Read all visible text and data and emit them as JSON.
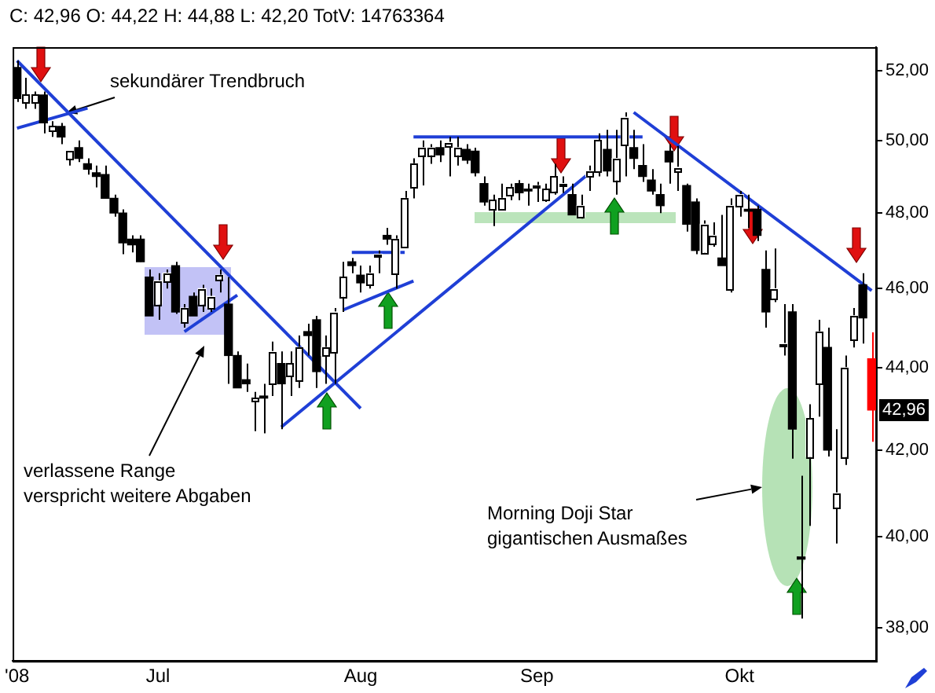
{
  "chart_data": {
    "type": "candlestick",
    "title": "C: 42,96 O: 44,22 H: 44,88 L: 42,20 TotV: 14763364",
    "categories": [
      "'08",
      null,
      null,
      null,
      null,
      null,
      null,
      null,
      null,
      null,
      null,
      null,
      null,
      null,
      null,
      null,
      "Jul",
      null,
      null,
      null,
      null,
      null,
      null,
      null,
      null,
      null,
      null,
      null,
      null,
      null,
      null,
      null,
      null,
      null,
      null,
      null,
      null,
      null,
      null,
      "Aug",
      null,
      null,
      null,
      null,
      null,
      null,
      null,
      null,
      null,
      null,
      null,
      null,
      null,
      null,
      null,
      null,
      null,
      null,
      null,
      "Sep",
      null,
      null,
      null,
      null,
      null,
      null,
      null,
      null,
      null,
      null,
      null,
      null,
      null,
      null,
      null,
      null,
      null,
      null,
      null,
      null,
      null,
      null,
      "Okt",
      null,
      null,
      null,
      null,
      null,
      null,
      null,
      null,
      null,
      null,
      null,
      null,
      null,
      null,
      null
    ],
    "ohlc": [
      [
        52.1,
        52.3,
        51.1,
        51.2
      ],
      [
        51.1,
        51.8,
        50.9,
        51.3
      ],
      [
        51.1,
        51.4,
        50.9,
        51.3
      ],
      [
        51.3,
        51.4,
        50.2,
        50.5
      ],
      [
        50.3,
        50.55,
        50.1,
        50.4
      ],
      [
        50.4,
        50.5,
        49.9,
        50.1
      ],
      [
        49.5,
        49.7,
        49.3,
        49.7
      ],
      [
        49.8,
        50.0,
        49.4,
        49.5
      ],
      [
        49.35,
        49.5,
        49.05,
        49.2
      ],
      [
        49.1,
        49.3,
        48.7,
        49.0
      ],
      [
        49.05,
        49.3,
        48.4,
        48.4
      ],
      [
        48.4,
        48.5,
        47.9,
        48.0
      ],
      [
        48.0,
        48.1,
        46.9,
        47.2
      ],
      [
        47.3,
        47.4,
        46.95,
        47.15
      ],
      [
        47.3,
        47.4,
        46.7,
        46.7
      ],
      [
        46.3,
        46.5,
        45.3,
        45.3
      ],
      [
        45.6,
        46.4,
        45.2,
        46.2
      ],
      [
        46.2,
        46.5,
        46.0,
        46.4
      ],
      [
        46.6,
        46.7,
        45.35,
        45.4
      ],
      [
        45.15,
        45.6,
        45.0,
        45.5
      ],
      [
        45.8,
        45.9,
        45.3,
        45.3
      ],
      [
        45.6,
        46.1,
        45.4,
        46.0
      ],
      [
        45.5,
        46.0,
        45.4,
        45.8
      ],
      [
        46.25,
        46.5,
        45.9,
        46.35
      ],
      [
        45.6,
        46.3,
        43.6,
        44.3
      ],
      [
        44.3,
        44.4,
        43.5,
        43.5
      ],
      [
        43.7,
        44.1,
        43.4,
        43.6
      ],
      [
        43.2,
        43.4,
        42.45,
        43.25
      ],
      [
        43.3,
        43.6,
        42.4,
        43.25
      ],
      [
        43.6,
        44.65,
        43.3,
        44.4
      ],
      [
        44.1,
        44.4,
        42.5,
        43.6
      ],
      [
        43.8,
        44.4,
        43.3,
        44.1
      ],
      [
        43.7,
        44.8,
        43.5,
        44.5
      ],
      [
        44.9,
        45.1,
        44.3,
        44.8
      ],
      [
        45.2,
        45.3,
        43.5,
        43.9
      ],
      [
        44.3,
        44.8,
        43.6,
        44.5
      ],
      [
        44.4,
        45.5,
        43.6,
        45.4
      ],
      [
        45.8,
        46.7,
        45.4,
        46.3
      ],
      [
        46.7,
        46.8,
        46.4,
        46.6
      ],
      [
        46.35,
        46.6,
        45.9,
        46.15
      ],
      [
        46.1,
        46.6,
        46.0,
        46.4
      ],
      [
        46.85,
        47.0,
        46.4,
        46.9
      ],
      [
        47.4,
        47.6,
        47.15,
        47.3
      ],
      [
        46.4,
        47.4,
        46.0,
        47.3
      ],
      [
        47.1,
        48.6,
        47.1,
        48.4
      ],
      [
        48.7,
        49.5,
        48.4,
        49.35
      ],
      [
        49.6,
        50.0,
        48.75,
        49.8
      ],
      [
        49.6,
        49.9,
        49.35,
        49.8
      ],
      [
        49.8,
        50.0,
        49.4,
        49.6
      ],
      [
        49.85,
        50.1,
        49.0,
        49.95
      ],
      [
        49.6,
        50.1,
        49.3,
        49.8
      ],
      [
        49.75,
        49.9,
        49.35,
        49.45
      ],
      [
        49.7,
        49.8,
        49.0,
        49.1
      ],
      [
        48.8,
        49.0,
        48.2,
        48.3
      ],
      [
        48.1,
        48.5,
        47.65,
        48.35
      ],
      [
        48.1,
        48.8,
        48.1,
        48.4
      ],
      [
        48.5,
        48.8,
        48.35,
        48.7
      ],
      [
        48.8,
        48.9,
        48.35,
        48.55
      ],
      [
        48.65,
        48.8,
        48.2,
        48.6
      ],
      [
        48.7,
        48.85,
        48.3,
        48.75
      ],
      [
        48.35,
        48.8,
        48.3,
        48.65
      ],
      [
        48.6,
        49.35,
        48.5,
        49.0
      ],
      [
        48.75,
        49.0,
        48.55,
        48.8
      ],
      [
        48.5,
        48.8,
        47.95,
        47.95
      ],
      [
        47.9,
        48.5,
        47.85,
        48.2
      ],
      [
        49.0,
        49.3,
        48.6,
        49.15
      ],
      [
        49.15,
        50.2,
        49.0,
        50.0
      ],
      [
        49.75,
        50.3,
        49.0,
        49.15
      ],
      [
        48.9,
        50.3,
        48.5,
        49.5
      ],
      [
        49.9,
        50.8,
        49.0,
        50.66
      ],
      [
        49.8,
        50.3,
        49.2,
        49.5
      ],
      [
        49.3,
        49.9,
        48.85,
        49.0
      ],
      [
        48.9,
        49.2,
        48.5,
        48.6
      ],
      [
        48.5,
        48.8,
        48.0,
        48.2
      ],
      [
        49.7,
        49.9,
        48.8,
        49.4
      ],
      [
        49.15,
        49.85,
        48.6,
        49.25
      ],
      [
        48.75,
        48.8,
        47.5,
        47.7
      ],
      [
        48.3,
        48.4,
        46.9,
        47.0
      ],
      [
        46.95,
        47.8,
        46.9,
        47.7
      ],
      [
        47.2,
        47.75,
        47.1,
        47.4
      ],
      [
        46.8,
        47.95,
        46.6,
        46.6
      ],
      [
        46.0,
        48.4,
        45.9,
        48.2
      ],
      [
        48.2,
        48.6,
        47.9,
        48.5
      ],
      [
        48.1,
        48.5,
        47.6,
        48.05
      ],
      [
        48.1,
        48.2,
        47.25,
        47.4
      ],
      [
        46.5,
        47.0,
        45.0,
        45.4
      ],
      [
        45.75,
        47.05,
        45.65,
        46.0
      ],
      [
        44.55,
        45.6,
        44.3,
        44.6
      ],
      [
        45.4,
        45.6,
        41.8,
        42.5
      ],
      [
        39.55,
        41.4,
        38.2,
        39.5
      ],
      [
        41.85,
        43.1,
        40.25,
        42.75
      ],
      [
        43.6,
        45.2,
        42.8,
        44.9
      ],
      [
        44.5,
        45.0,
        41.85,
        42.0
      ],
      [
        40.65,
        42.5,
        39.85,
        41.0
      ],
      [
        41.85,
        44.3,
        41.65,
        44.0
      ],
      [
        44.7,
        45.5,
        44.5,
        45.3
      ],
      [
        46.1,
        46.4,
        44.6,
        45.25
      ],
      [
        44.22,
        44.88,
        42.2,
        42.96
      ]
    ],
    "colors": [
      "#000000",
      "#ffffff",
      "#ffffff",
      "#000000",
      "#ffffff",
      "#000000",
      "#ffffff",
      "#000000",
      "#000000",
      "#000000",
      "#000000",
      "#000000",
      "#000000",
      "#000000",
      "#000000",
      "#000000",
      "#ffffff",
      "#ffffff",
      "#000000",
      "#ffffff",
      "#000000",
      "#ffffff",
      "#ffffff",
      "#ffffff",
      "#000000",
      "#000000",
      "#000000",
      "#ffffff",
      "#000000",
      "#ffffff",
      "#000000",
      "#ffffff",
      "#ffffff",
      "#000000",
      "#000000",
      "#ffffff",
      "#ffffff",
      "#ffffff",
      "#000000",
      "#000000",
      "#ffffff",
      "#ffffff",
      "#000000",
      "#ffffff",
      "#ffffff",
      "#ffffff",
      "#ffffff",
      "#ffffff",
      "#000000",
      "#ffffff",
      "#ffffff",
      "#000000",
      "#000000",
      "#000000",
      "#ffffff",
      "#ffffff",
      "#ffffff",
      "#000000",
      "#000000",
      "#ffffff",
      "#ffffff",
      "#ffffff",
      "#ffffff",
      "#000000",
      "#ffffff",
      "#ffffff",
      "#ffffff",
      "#000000",
      "#ffffff",
      "#ffffff",
      "#000000",
      "#000000",
      "#000000",
      "#000000",
      "#000000",
      "#ffffff",
      "#000000",
      "#000000",
      "#ffffff",
      "#ffffff",
      "#000000",
      "#ffffff",
      "#ffffff",
      "#000000",
      "#000000",
      "#000000",
      "#ffffff",
      "#ffffff",
      "#000000",
      "#000000",
      "#ffffff",
      "#ffffff",
      "#000000",
      "#ffffff",
      "#ffffff",
      "#ffffff",
      "#000000",
      "#ff0000"
    ],
    "series": [
      {
        "type": "line",
        "color": "#1f3fd6",
        "values": [
          52.3,
          null,
          null,
          null,
          null,
          null,
          null,
          null,
          null,
          null,
          null,
          null,
          null,
          null,
          null,
          null,
          null,
          null,
          null,
          null,
          null,
          null,
          null,
          null,
          null,
          null,
          null,
          null,
          null,
          null,
          null,
          null,
          null,
          null,
          null,
          null,
          null,
          null,
          null,
          43.0,
          null,
          null,
          null,
          null,
          null,
          null,
          null,
          null,
          null,
          null,
          null,
          null,
          null,
          null,
          null,
          null,
          null,
          null,
          null,
          null,
          null,
          null,
          null,
          null,
          null,
          null,
          null,
          null,
          null,
          null,
          null,
          null,
          null,
          null,
          null,
          null,
          null,
          null,
          null,
          null,
          null,
          null,
          null,
          null,
          null,
          null,
          null,
          null,
          null,
          null,
          null,
          null,
          null,
          null,
          null,
          null,
          null,
          null
        ]
      },
      {
        "type": "line",
        "color": "#1f3fd6",
        "values": [
          50.35,
          null,
          null,
          null,
          null,
          null,
          null,
          null,
          50.92,
          null,
          null,
          null,
          null,
          null,
          null,
          null,
          null,
          null,
          null,
          null,
          null,
          null,
          null,
          null,
          null,
          null,
          null,
          null,
          null,
          null,
          null,
          null,
          null,
          null,
          null,
          null,
          null,
          null,
          null,
          null,
          null,
          null,
          null,
          null,
          null,
          null,
          null,
          null,
          null,
          null,
          null,
          null,
          null,
          null,
          null,
          null,
          null,
          null,
          null,
          null,
          null,
          null,
          null,
          null,
          null,
          null,
          null,
          null,
          null,
          null,
          null,
          null,
          null,
          null,
          null,
          null,
          null,
          null,
          null,
          null,
          null,
          null,
          null,
          null,
          null,
          null,
          null,
          null,
          null,
          null,
          null,
          null,
          null,
          null,
          null,
          null,
          null,
          null
        ]
      },
      {
        "type": "line",
        "color": "#1f3fd6",
        "values": [
          null,
          null,
          null,
          null,
          null,
          null,
          null,
          null,
          null,
          null,
          null,
          null,
          null,
          null,
          null,
          null,
          null,
          null,
          null,
          44.9,
          null,
          null,
          null,
          null,
          null,
          45.83,
          null,
          null,
          null,
          null,
          null,
          null,
          null,
          null,
          null,
          null,
          null,
          null,
          null,
          null,
          null,
          null,
          null,
          null,
          null,
          null,
          null,
          null,
          null,
          null,
          null,
          null,
          null,
          null,
          null,
          null,
          null,
          null,
          null,
          null,
          null,
          null,
          null,
          null,
          null,
          null,
          null,
          null,
          null,
          null,
          null,
          null,
          null,
          null,
          null,
          null,
          null,
          null,
          null,
          null,
          null,
          null,
          null,
          null,
          null,
          null,
          null,
          null,
          null,
          null,
          null,
          null,
          null,
          null,
          null,
          null,
          null,
          null
        ]
      },
      {
        "type": "line",
        "color": "#1f3fd6",
        "values": [
          null,
          null,
          null,
          null,
          null,
          null,
          null,
          null,
          null,
          null,
          null,
          null,
          null,
          null,
          null,
          null,
          null,
          null,
          null,
          null,
          null,
          null,
          null,
          null,
          null,
          null,
          null,
          null,
          null,
          null,
          42.55,
          null,
          null,
          null,
          null,
          null,
          null,
          null,
          null,
          null,
          null,
          null,
          null,
          null,
          null,
          null,
          null,
          null,
          null,
          null,
          null,
          null,
          null,
          null,
          null,
          null,
          null,
          null,
          null,
          null,
          null,
          null,
          null,
          null,
          null,
          49.1,
          null,
          null,
          null,
          null,
          null,
          null,
          null,
          null,
          null,
          null,
          null,
          null,
          null,
          null,
          null,
          null,
          null,
          null,
          null,
          null,
          null,
          null,
          null,
          null,
          null,
          null,
          null,
          null,
          null,
          null,
          null,
          null
        ]
      },
      {
        "type": "line",
        "color": "#1f3fd6",
        "values": [
          null,
          null,
          null,
          null,
          null,
          null,
          null,
          null,
          null,
          null,
          null,
          null,
          null,
          null,
          null,
          null,
          null,
          null,
          null,
          null,
          null,
          null,
          null,
          null,
          null,
          null,
          null,
          null,
          null,
          null,
          null,
          null,
          null,
          null,
          null,
          null,
          null,
          null,
          null,
          null,
          null,
          null,
          null,
          null,
          null,
          50.1,
          null,
          null,
          null,
          null,
          null,
          null,
          null,
          null,
          null,
          null,
          null,
          null,
          null,
          null,
          null,
          null,
          null,
          null,
          null,
          null,
          null,
          null,
          null,
          null,
          null,
          50.1,
          null,
          null,
          null,
          null,
          null,
          null,
          null,
          null,
          null,
          null,
          null,
          null,
          null,
          null,
          null,
          null,
          null,
          null,
          null,
          null,
          null,
          null,
          null,
          null,
          null,
          null
        ]
      },
      {
        "type": "line",
        "color": "#1f3fd6",
        "values": [
          null,
          null,
          null,
          null,
          null,
          null,
          null,
          null,
          null,
          null,
          null,
          null,
          null,
          null,
          null,
          null,
          null,
          null,
          null,
          null,
          null,
          null,
          null,
          null,
          null,
          null,
          null,
          null,
          null,
          null,
          null,
          null,
          null,
          null,
          null,
          null,
          null,
          null,
          46.95,
          null,
          null,
          null,
          null,
          null,
          46.95,
          null,
          null,
          null,
          null,
          null,
          null,
          null,
          null,
          null,
          null,
          null,
          null,
          null,
          null,
          null,
          null,
          null,
          null,
          null,
          null,
          null,
          null,
          null,
          null,
          null,
          null,
          null,
          null,
          null,
          null,
          null,
          null,
          null,
          null,
          null,
          null,
          null,
          null,
          null,
          null,
          null,
          null,
          null,
          null,
          null,
          null,
          null,
          null,
          null,
          null,
          null,
          null,
          null
        ]
      },
      {
        "type": "line",
        "color": "#1f3fd6",
        "values": [
          null,
          null,
          null,
          null,
          null,
          null,
          null,
          null,
          null,
          null,
          null,
          null,
          null,
          null,
          null,
          null,
          null,
          null,
          null,
          null,
          null,
          null,
          null,
          null,
          null,
          null,
          null,
          null,
          null,
          null,
          null,
          null,
          null,
          null,
          null,
          null,
          null,
          45.45,
          null,
          null,
          null,
          null,
          null,
          null,
          null,
          46.2,
          null,
          null,
          null,
          null,
          null,
          null,
          null,
          null,
          null,
          null,
          null,
          null,
          null,
          null,
          null,
          null,
          null,
          null,
          null,
          null,
          null,
          null,
          null,
          null,
          null,
          null,
          null,
          null,
          null,
          null,
          null,
          null,
          null,
          null,
          null,
          null,
          null,
          null,
          null,
          null,
          null,
          null,
          null,
          null,
          null,
          null,
          null,
          null,
          null,
          null,
          null,
          null
        ]
      },
      {
        "type": "line",
        "color": "#1f3fd6",
        "values": [
          null,
          null,
          null,
          null,
          null,
          null,
          null,
          null,
          null,
          null,
          null,
          null,
          null,
          null,
          null,
          null,
          null,
          null,
          null,
          null,
          null,
          null,
          null,
          null,
          null,
          null,
          null,
          null,
          null,
          null,
          null,
          null,
          null,
          null,
          null,
          null,
          null,
          null,
          null,
          null,
          null,
          null,
          null,
          null,
          null,
          null,
          null,
          null,
          null,
          null,
          null,
          null,
          null,
          null,
          null,
          null,
          null,
          null,
          null,
          null,
          null,
          null,
          null,
          null,
          null,
          null,
          null,
          null,
          null,
          null,
          50.8,
          null,
          null,
          null,
          null,
          null,
          null,
          null,
          null,
          null,
          null,
          null,
          null,
          null,
          null,
          null,
          null,
          null,
          null,
          null,
          null,
          null,
          null,
          null,
          null,
          null,
          null,
          45.95
        ]
      }
    ],
    "ylim": [
      37.3,
      52.7
    ],
    "yticks": [
      {
        "value": 38,
        "label": "38,00"
      },
      {
        "value": 40,
        "label": "40,00"
      },
      {
        "value": 42,
        "label": "42,00"
      },
      {
        "value": 44,
        "label": "44,00"
      },
      {
        "value": 46,
        "label": "46,00"
      },
      {
        "value": 48,
        "label": "48,00"
      },
      {
        "value": 50,
        "label": "50,00"
      },
      {
        "value": 52,
        "label": "52,00"
      }
    ],
    "log": "y",
    "annotations": [
      "sekundärer Trendbruch",
      "verlassene Range\nverspricht weitere Abgaben",
      "Morning Doji Star\ngigantischen Ausmaßes",
      {
        "text": "42,96",
        "y": 42.96
      }
    ]
  }
}
